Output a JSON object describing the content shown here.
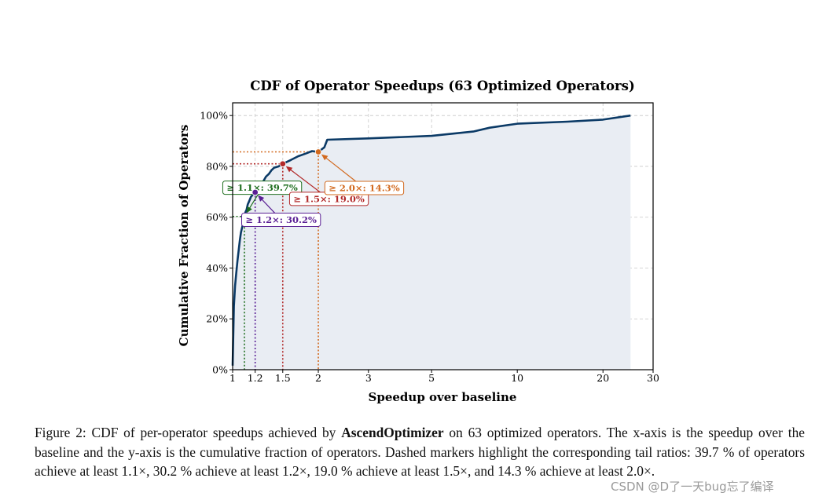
{
  "chart_data": {
    "type": "line",
    "title": "CDF of Operator Speedups (63 Optimized Operators)",
    "xlabel": "Speedup over baseline",
    "ylabel": "Cumulative Fraction of Operators",
    "xscale": "log",
    "xlim": [
      1,
      30
    ],
    "ylim": [
      0,
      1.05
    ],
    "xticks": [
      {
        "value": 1,
        "label": "1"
      },
      {
        "value": 1.2,
        "label": "1.2"
      },
      {
        "value": 1.5,
        "label": "1.5"
      },
      {
        "value": 2,
        "label": "2"
      },
      {
        "value": 3,
        "label": "3"
      },
      {
        "value": 5,
        "label": "5"
      },
      {
        "value": 10,
        "label": "10"
      },
      {
        "value": 20,
        "label": "20"
      },
      {
        "value": 30,
        "label": "30"
      }
    ],
    "yticks": [
      {
        "value": 0,
        "label": "0%"
      },
      {
        "value": 0.2,
        "label": "20%"
      },
      {
        "value": 0.4,
        "label": "40%"
      },
      {
        "value": 0.6,
        "label": "60%"
      },
      {
        "value": 0.8,
        "label": "80%"
      },
      {
        "value": 1.0,
        "label": "100%"
      }
    ],
    "grid": true,
    "series": [
      {
        "name": "CDF",
        "color": "#0b3a66",
        "fill": "#e9edf3",
        "x": [
          1.0,
          1.01,
          1.02,
          1.03,
          1.04,
          1.05,
          1.06,
          1.07,
          1.08,
          1.09,
          1.1,
          1.11,
          1.12,
          1.13,
          1.14,
          1.15,
          1.16,
          1.17,
          1.18,
          1.2,
          1.22,
          1.25,
          1.28,
          1.31,
          1.34,
          1.37,
          1.4,
          1.45,
          1.5,
          1.6,
          1.7,
          1.8,
          1.9,
          2.0,
          2.1,
          2.15,
          3.0,
          5.0,
          7.0,
          8.0,
          10.0,
          15.0,
          20.0,
          25.0
        ],
        "y": [
          0.016,
          0.25,
          0.33,
          0.38,
          0.43,
          0.47,
          0.51,
          0.54,
          0.56,
          0.58,
          0.603,
          0.62,
          0.63,
          0.65,
          0.66,
          0.67,
          0.68,
          0.685,
          0.69,
          0.698,
          0.71,
          0.73,
          0.74,
          0.76,
          0.77,
          0.785,
          0.795,
          0.8,
          0.81,
          0.825,
          0.84,
          0.85,
          0.86,
          0.857,
          0.875,
          0.905,
          0.91,
          0.92,
          0.937,
          0.952,
          0.968,
          0.976,
          0.984,
          1.0
        ]
      }
    ],
    "markers": [
      {
        "x": 1.1,
        "y": 0.603,
        "color": "#1e6e1e",
        "label": "≥ 1.1×: 39.7%",
        "anchor": [
          1.27,
          0.716
        ]
      },
      {
        "x": 1.2,
        "y": 0.698,
        "color": "#5a1f94",
        "label": "≥ 1.2×: 30.2%",
        "anchor": [
          1.48,
          0.59
        ]
      },
      {
        "x": 1.5,
        "y": 0.81,
        "color": "#b22a2a",
        "label": "≥ 1.5×: 19.0%",
        "anchor": [
          2.18,
          0.672
        ]
      },
      {
        "x": 2.0,
        "y": 0.857,
        "color": "#d2691e",
        "label": "≥ 2.0×: 14.3%",
        "anchor": [
          2.9,
          0.715
        ]
      }
    ]
  },
  "caption": {
    "prefix": "Figure 2: CDF of per-operator speedups achieved by ",
    "bold": "AscendOptimizer",
    "suffix": " on 63 optimized operators. The x-axis is the speedup over the baseline and the y-axis is the cumulative fraction of operators. Dashed markers highlight the corresponding tail ratios: 39.7 % of operators achieve at least 1.1×, 30.2 % achieve at least 1.2×, 19.0 % achieve at least 1.5×, and 14.3 % achieve at least 2.0×."
  },
  "watermark": "CSDN @D了一天bug忘了编译"
}
